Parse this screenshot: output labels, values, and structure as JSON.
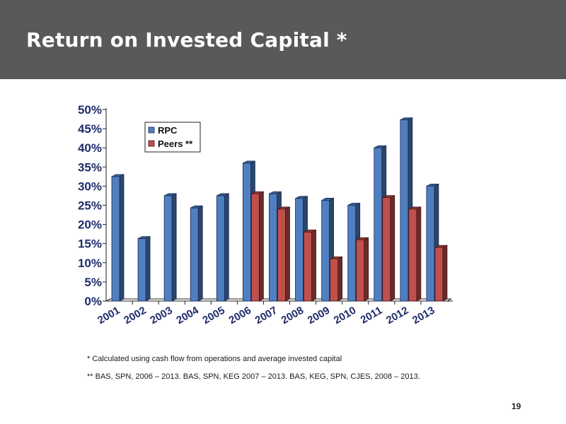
{
  "slide": {
    "title": "Return on Invested Capital *",
    "footnotes": [
      "* Calculated using cash flow from operations and average invested capital",
      "** BAS, SPN, 2006 – 2013. BAS, SPN, KEG 2007 – 2013.  BAS, KEG, SPN, CJES, 2008 – 2013."
    ],
    "page_number": "19"
  },
  "colors": {
    "header_bg": "#595959",
    "rpc": "#4f7fc0",
    "peers": "#c0504d"
  },
  "chart_data": {
    "type": "bar",
    "categories": [
      "2001",
      "2002",
      "2003",
      "2004",
      "2005",
      "2006",
      "2007",
      "2008",
      "2009",
      "2010",
      "2011",
      "2012",
      "2013"
    ],
    "series": [
      {
        "name": "RPC",
        "values": [
          32.5,
          16.3,
          27.5,
          24.3,
          27.5,
          36,
          28,
          26.8,
          26.3,
          25,
          40,
          47.3,
          30
        ]
      },
      {
        "name": "Peers **",
        "values": [
          null,
          null,
          null,
          null,
          null,
          28,
          24,
          18,
          11,
          16,
          27,
          24,
          14
        ]
      }
    ],
    "ylim": [
      0,
      50
    ],
    "yticks": [
      "0%",
      "5%",
      "10%",
      "15%",
      "20%",
      "25%",
      "30%",
      "35%",
      "40%",
      "45%",
      "50%"
    ],
    "legend": "top-left",
    "grid": false
  }
}
